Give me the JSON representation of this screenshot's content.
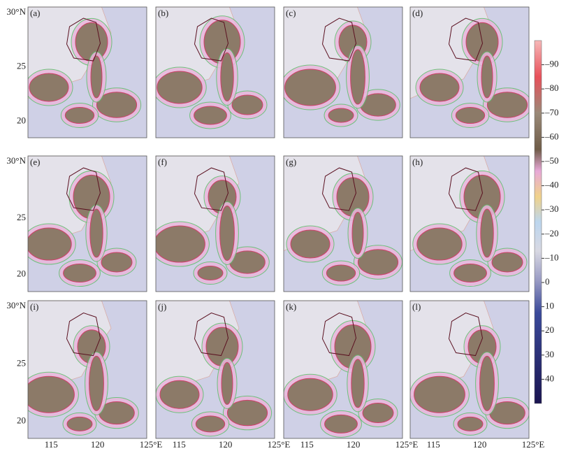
{
  "panels": [
    "(a)",
    "(b)",
    "(c)",
    "(d)",
    "(e)",
    "(f)",
    "(g)",
    "(h)",
    "(i)",
    "(j)",
    "(k)",
    "(l)"
  ],
  "xlim": [
    112.5,
    125.3
  ],
  "ylim": [
    18.5,
    30.5
  ],
  "lon_ticks": [
    115,
    120,
    {
      "value": 125,
      "label": "125°E"
    }
  ],
  "lat_ticks": [
    {
      "value": 30,
      "label": "30°N"
    },
    25,
    20
  ],
  "colorbar": {
    "clim": [
      -100,
      50
    ],
    "ticks": [
      {
        "value": -90,
        "label": "–90"
      },
      {
        "value": -80,
        "label": "–80"
      },
      {
        "value": -70,
        "label": "–70"
      },
      {
        "value": -60,
        "label": "–60"
      },
      {
        "value": -50,
        "label": "–50"
      },
      {
        "value": -40,
        "label": "–40"
      },
      {
        "value": -30,
        "label": "–30"
      },
      {
        "value": -20,
        "label": "–20"
      },
      {
        "value": -10,
        "label": "–10"
      },
      0,
      10,
      20,
      30,
      40
    ]
  }
}
